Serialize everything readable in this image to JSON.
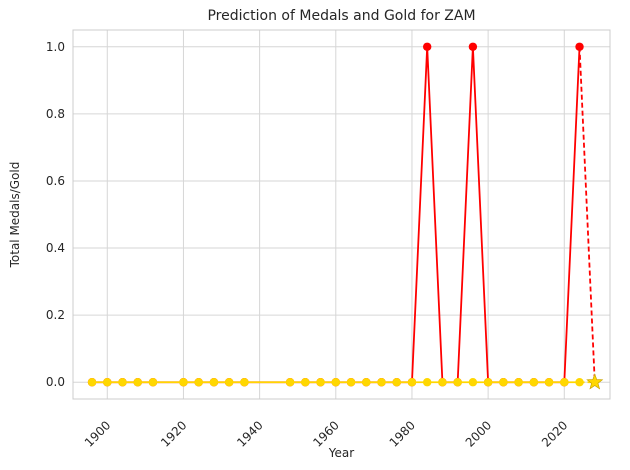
{
  "chart_data": {
    "type": "line",
    "title": "Prediction of Medals and Gold for ZAM",
    "xlabel": "Year",
    "ylabel": "Total Medals/Gold",
    "xlim": [
      1891,
      2032
    ],
    "ylim": [
      -0.05,
      1.05
    ],
    "xticks": [
      1900,
      1920,
      1940,
      1960,
      1980,
      2000,
      2020
    ],
    "yticks": [
      0.0,
      0.2,
      0.4,
      0.6,
      0.8,
      1.0
    ],
    "xtick_labels": [
      "1900",
      "1920",
      "1940",
      "1960",
      "1980",
      "2000",
      "2020"
    ],
    "ytick_labels": [
      "0.0",
      "0.2",
      "0.4",
      "0.6",
      "0.8",
      "1.0"
    ],
    "grid": true,
    "legend": "none",
    "series": [
      {
        "kind": "total_medals_history",
        "color": "#ff0000",
        "style": "solid",
        "marker": "circle",
        "x": [
          1896,
          1900,
          1904,
          1908,
          1912,
          1920,
          1924,
          1928,
          1932,
          1936,
          1948,
          1952,
          1956,
          1960,
          1964,
          1968,
          1972,
          1976,
          1980,
          1984,
          1988,
          1992,
          1996,
          2000,
          2004,
          2008,
          2012,
          2016,
          2020,
          2024
        ],
        "y": [
          0,
          0,
          0,
          0,
          0,
          0,
          0,
          0,
          0,
          0,
          0,
          0,
          0,
          0,
          0,
          0,
          0,
          0,
          0,
          1,
          0,
          0,
          1,
          0,
          0,
          0,
          0,
          0,
          0,
          1
        ]
      },
      {
        "kind": "total_medals_prediction",
        "color": "#ff0000",
        "style": "dashed",
        "marker": "star",
        "x": [
          2024,
          2028
        ],
        "y": [
          1,
          0
        ]
      },
      {
        "kind": "gold_history",
        "color": "#ffd700",
        "style": "solid",
        "marker": "circle",
        "x": [
          1896,
          1900,
          1904,
          1908,
          1912,
          1920,
          1924,
          1928,
          1932,
          1936,
          1948,
          1952,
          1956,
          1960,
          1964,
          1968,
          1972,
          1976,
          1980,
          1984,
          1988,
          1992,
          1996,
          2000,
          2004,
          2008,
          2012,
          2016,
          2020,
          2024
        ],
        "y": [
          0,
          0,
          0,
          0,
          0,
          0,
          0,
          0,
          0,
          0,
          0,
          0,
          0,
          0,
          0,
          0,
          0,
          0,
          0,
          0,
          0,
          0,
          0,
          0,
          0,
          0,
          0,
          0,
          0,
          0
        ]
      },
      {
        "kind": "gold_prediction",
        "color": "#ffd700",
        "style": "dashed",
        "marker": "star",
        "x": [
          2024,
          2028
        ],
        "y": [
          0,
          0
        ]
      }
    ]
  }
}
